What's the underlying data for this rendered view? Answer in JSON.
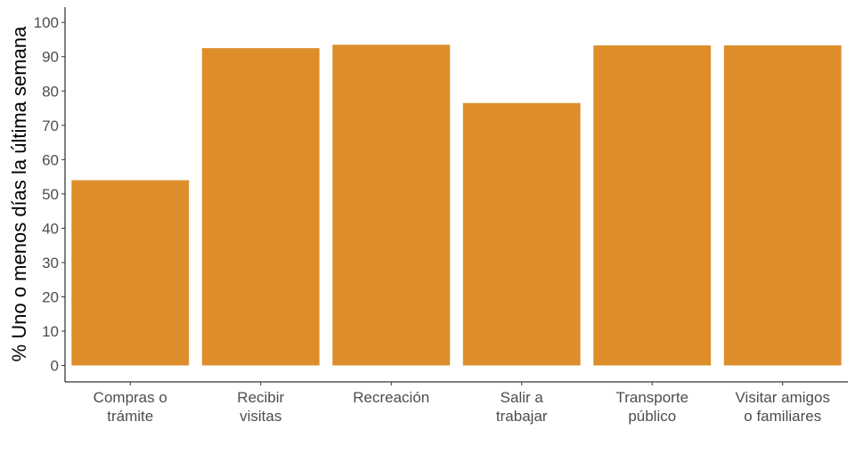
{
  "chart_data": {
    "type": "bar",
    "categories": [
      [
        "Compras o",
        "trámite"
      ],
      [
        "Recibir",
        "visitas"
      ],
      [
        "Recreación"
      ],
      [
        "Salir a",
        "trabajar"
      ],
      [
        "Transporte",
        "público"
      ],
      [
        "Visitar amigos",
        "o familiares"
      ]
    ],
    "values": [
      54,
      92.5,
      93.5,
      76.5,
      93.3,
      93.3
    ],
    "title": "",
    "xlabel": "",
    "ylabel": "% Uno o menos días la última semana",
    "ylim": [
      0,
      100
    ],
    "yticks": [
      0,
      10,
      20,
      30,
      40,
      50,
      60,
      70,
      80,
      90,
      100
    ],
    "bar_color": "#dd8e2b",
    "grid": false,
    "legend": "none"
  }
}
